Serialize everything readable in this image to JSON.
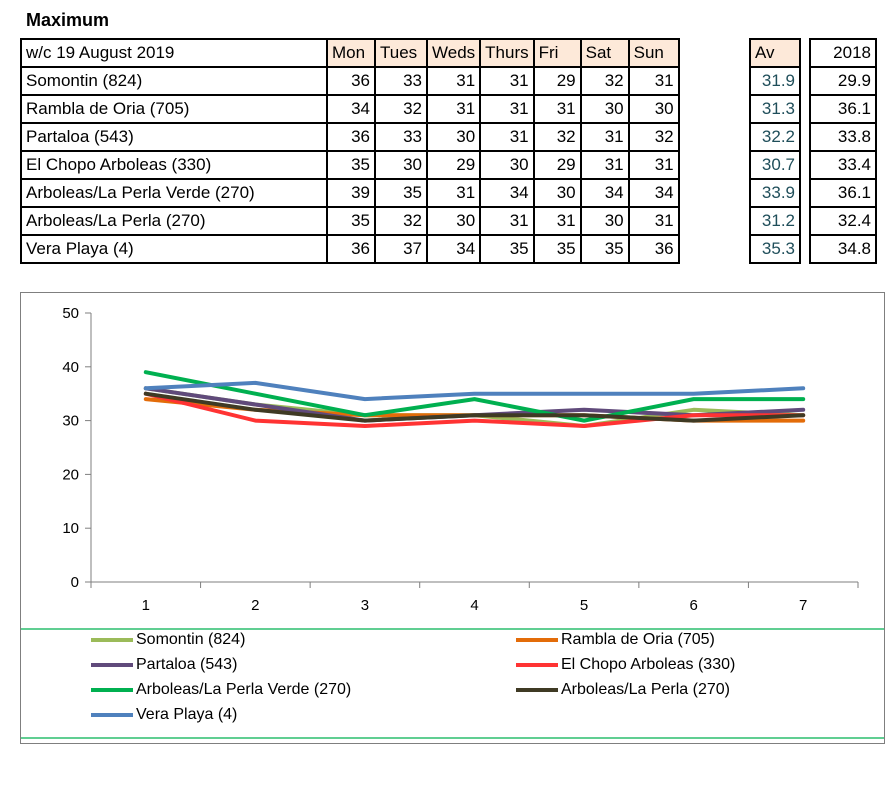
{
  "title": "Maximum",
  "table": {
    "corner": "w/c 19 August 2019",
    "days": [
      "Mon",
      "Tues",
      "Weds",
      "Thurs",
      "Fri",
      "Sat",
      "Sun"
    ],
    "av_header": "Av",
    "year_header": "2018",
    "rows": [
      {
        "name": "Somontin (824)",
        "vals": [
          "36",
          "33",
          "31",
          "31",
          "29",
          "32",
          "31"
        ],
        "av": "31.9",
        "y2018": "29.9"
      },
      {
        "name": "Rambla de Oria (705)",
        "vals": [
          "34",
          "32",
          "31",
          "31",
          "31",
          "30",
          "30"
        ],
        "av": "31.3",
        "y2018": "36.1"
      },
      {
        "name": "Partaloa (543)",
        "vals": [
          "36",
          "33",
          "30",
          "31",
          "32",
          "31",
          "32"
        ],
        "av": "32.2",
        "y2018": "33.8"
      },
      {
        "name": "El Chopo  Arboleas (330)",
        "vals": [
          "35",
          "30",
          "29",
          "30",
          "29",
          "31",
          "31"
        ],
        "av": "30.7",
        "y2018": "33.4"
      },
      {
        "name": "Arboleas/La Perla Verde (270)",
        "vals": [
          "39",
          "35",
          "31",
          "34",
          "30",
          "34",
          "34"
        ],
        "av": "33.9",
        "y2018": "36.1"
      },
      {
        "name": "Arboleas/La Perla (270)",
        "vals": [
          "35",
          "32",
          "30",
          "31",
          "31",
          "30",
          "31"
        ],
        "av": "31.2",
        "y2018": "32.4"
      },
      {
        "name": "Vera Playa (4)",
        "vals": [
          "36",
          "37",
          "34",
          "35",
          "35",
          "35",
          "36"
        ],
        "av": "35.3",
        "y2018": "34.8"
      }
    ]
  },
  "chart_data": {
    "type": "line",
    "x": [
      1,
      2,
      3,
      4,
      5,
      6,
      7
    ],
    "ylim": [
      0,
      50
    ],
    "yticks": [
      0,
      10,
      20,
      30,
      40,
      50
    ],
    "series": [
      {
        "name": "Somontin (824)",
        "color": "#9bbb59",
        "values": [
          36,
          33,
          31,
          31,
          29,
          32,
          31
        ]
      },
      {
        "name": "Rambla de Oria (705)",
        "color": "#e36c09",
        "values": [
          34,
          32,
          31,
          31,
          31,
          30,
          30
        ]
      },
      {
        "name": "Partaloa (543)",
        "color": "#604a7b",
        "values": [
          36,
          33,
          30,
          31,
          32,
          31,
          32
        ]
      },
      {
        "name": "El Chopo  Arboleas (330)",
        "color": "#ff3333",
        "values": [
          35,
          30,
          29,
          30,
          29,
          31,
          31
        ]
      },
      {
        "name": "Arboleas/La Perla Verde (270)",
        "color": "#00b050",
        "values": [
          39,
          35,
          31,
          34,
          30,
          34,
          34
        ]
      },
      {
        "name": "Arboleas/La Perla (270)",
        "color": "#3f3a24",
        "values": [
          35,
          32,
          30,
          31,
          31,
          30,
          31
        ]
      },
      {
        "name": "Vera Playa (4)",
        "color": "#4f81bd",
        "values": [
          36,
          37,
          34,
          35,
          35,
          35,
          36
        ]
      }
    ],
    "grid": false,
    "legend": "bottom"
  }
}
